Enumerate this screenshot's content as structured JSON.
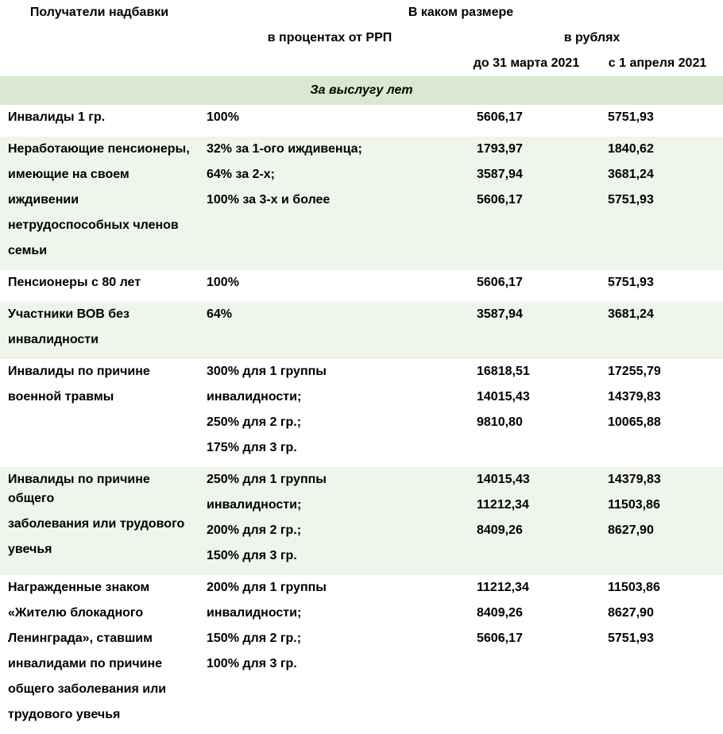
{
  "headers": {
    "col1": "Получатели надбавки",
    "col2_main": "В каком размере",
    "col2_sub": "в процентах от РРП",
    "col3_main": "в рублях",
    "col3_sub": "до 31 марта 2021",
    "col4_sub": "с 1 апреля 2021"
  },
  "section_title": "За выслугу лет",
  "rows": [
    {
      "alt": false,
      "recipient": [
        "Инвалиды 1 гр."
      ],
      "percent": [
        "100%"
      ],
      "before": [
        "5606,17"
      ],
      "after": [
        "5751,93"
      ]
    },
    {
      "alt": true,
      "recipient": [
        "Неработающие пенсионеры,",
        "имеющие на своем",
        "иждивении",
        "нетрудоспособных членов",
        "семьи"
      ],
      "percent": [
        "32% за 1-ого иждивенца;",
        "64% за 2-х;",
        "100% за 3-х и более"
      ],
      "before": [
        "1793,97",
        "3587,94",
        "5606,17"
      ],
      "after": [
        "1840,62",
        "3681,24",
        "5751,93"
      ]
    },
    {
      "alt": false,
      "recipient": [
        "Пенсионеры с 80 лет"
      ],
      "percent": [
        "100%"
      ],
      "before": [
        "5606,17"
      ],
      "after": [
        "5751,93"
      ]
    },
    {
      "alt": true,
      "recipient": [
        "Участники ВОВ без",
        "инвалидности"
      ],
      "percent": [
        "64%"
      ],
      "before": [
        "3587,94"
      ],
      "after": [
        "3681,24"
      ]
    },
    {
      "alt": false,
      "recipient": [
        "Инвалиды по причине",
        "военной травмы"
      ],
      "percent": [
        "300% для 1 группы",
        "инвалидности;",
        "250% для 2 гр.;",
        "175% для 3 гр."
      ],
      "before": [
        "16818,51",
        "14015,43",
        "9810,80"
      ],
      "after": [
        "17255,79",
        "14379,83",
        "10065,88"
      ]
    },
    {
      "alt": true,
      "recipient": [
        "Инвалиды по причине общего",
        "заболевания или трудового",
        "увечья"
      ],
      "percent": [
        "250% для 1 группы",
        "инвалидности;",
        "200% для 2 гр.;",
        "150% для 3 гр."
      ],
      "before": [
        "14015,43",
        "11212,34",
        "8409,26"
      ],
      "after": [
        "14379,83",
        "11503,86",
        "8627,90"
      ]
    },
    {
      "alt": false,
      "recipient": [
        "Награжденные знаком",
        "«Жителю блокадного",
        "Ленинграда», ставшим",
        "инвалидами по причине",
        "общего заболевания или",
        "трудового увечья"
      ],
      "percent": [
        "200% для 1 группы",
        "инвалидности;",
        "150% для 2 гр.;",
        "100% для 3 гр."
      ],
      "before": [
        "11212,34",
        "8409,26",
        "5606,17"
      ],
      "after": [
        "11503,86",
        "8627,90",
        "5751,93"
      ]
    }
  ],
  "colors": {
    "alt_bg": "#eff5ea",
    "section_bg": "#d9e8d0",
    "text": "#000000"
  }
}
